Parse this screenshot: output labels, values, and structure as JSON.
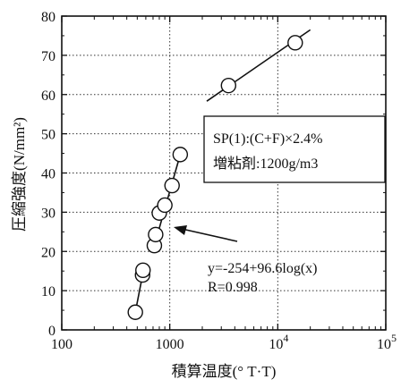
{
  "chart_data": {
    "type": "scatter",
    "xlabel": "積算温度(° T·T)",
    "ylabel": "圧縮強度(N/mm²)",
    "xscale": "log",
    "xlim": [
      100,
      100000
    ],
    "ylim": [
      0,
      80
    ],
    "x_ticks": [
      {
        "value": 100,
        "label": "100"
      },
      {
        "value": 1000,
        "label": "1000"
      },
      {
        "value": 10000,
        "base": "10",
        "exp": "4"
      },
      {
        "value": 100000,
        "base": "10",
        "exp": "5"
      }
    ],
    "y_ticks": [
      0,
      10,
      20,
      30,
      40,
      50,
      60,
      70,
      80
    ],
    "grid": "dotted",
    "points": [
      {
        "x": 480,
        "y": 4.5
      },
      {
        "x": 560,
        "y": 14.0
      },
      {
        "x": 565,
        "y": 15.2
      },
      {
        "x": 720,
        "y": 21.5
      },
      {
        "x": 740,
        "y": 24.3
      },
      {
        "x": 800,
        "y": 29.8
      },
      {
        "x": 900,
        "y": 31.8
      },
      {
        "x": 1050,
        "y": 36.8
      },
      {
        "x": 1250,
        "y": 44.7
      },
      {
        "x": 3500,
        "y": 62.3
      },
      {
        "x": 14500,
        "y": 73.2
      }
    ],
    "segments": [
      {
        "from": {
          "x": 480,
          "y": 4.5
        },
        "to": {
          "x": 560,
          "y": 14.0
        }
      },
      {
        "from": {
          "x": 720,
          "y": 21.5
        },
        "to": {
          "x": 1250,
          "y": 44.7
        }
      },
      {
        "from": {
          "x": 2200,
          "y": 58.3
        },
        "to": {
          "x": 20000,
          "y": 76.5
        }
      }
    ],
    "annotations": {
      "box_line1": "SP(1):(C+F)×2.4%",
      "box_line2": "増粘剤:1200g/m3",
      "equation": "y=-254+96.6log(x)",
      "r_value": "R=0.998"
    }
  }
}
